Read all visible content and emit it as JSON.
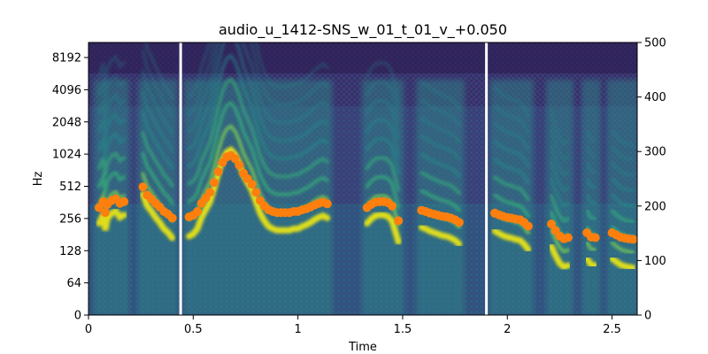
{
  "chart_data": {
    "type": "heatmap",
    "title": "audio_u_1412-SNS_w_01_t_01_v_+0.050",
    "xlabel": "Time",
    "ylabel": "Hz",
    "xlim": [
      0,
      2.62
    ],
    "x_ticks": [
      "0",
      "0.5",
      "1",
      "1.5",
      "2",
      "2.5"
    ],
    "x_tick_values": [
      0,
      0.5,
      1,
      1.5,
      2,
      2.5
    ],
    "y_left_ticks": [
      "0",
      "64",
      "128",
      "256",
      "512",
      "1024",
      "2048",
      "4096",
      "8192"
    ],
    "y_left_tick_values": [
      0,
      64,
      128,
      256,
      512,
      1024,
      2048,
      4096,
      8192
    ],
    "y_right_ticks": [
      "0",
      "100",
      "200",
      "300",
      "400",
      "500"
    ],
    "y_right_tick_values": [
      0,
      100,
      200,
      300,
      400,
      500
    ],
    "y_right_lim": [
      0,
      500
    ],
    "colormap": "viridis",
    "segment_gaps": [
      0.44,
      1.9
    ],
    "pitch_color": "#ff7f0e",
    "pitch_points": [
      {
        "x": 0.05,
        "y": 197
      },
      {
        "x": 0.07,
        "y": 208
      },
      {
        "x": 0.08,
        "y": 188
      },
      {
        "x": 0.09,
        "y": 203
      },
      {
        "x": 0.11,
        "y": 210
      },
      {
        "x": 0.13,
        "y": 213
      },
      {
        "x": 0.15,
        "y": 205
      },
      {
        "x": 0.17,
        "y": 208
      },
      {
        "x": 0.26,
        "y": 235
      },
      {
        "x": 0.28,
        "y": 220
      },
      {
        "x": 0.3,
        "y": 213
      },
      {
        "x": 0.32,
        "y": 205
      },
      {
        "x": 0.34,
        "y": 198
      },
      {
        "x": 0.36,
        "y": 190
      },
      {
        "x": 0.38,
        "y": 185
      },
      {
        "x": 0.4,
        "y": 178
      },
      {
        "x": 0.48,
        "y": 180
      },
      {
        "x": 0.5,
        "y": 183
      },
      {
        "x": 0.52,
        "y": 190
      },
      {
        "x": 0.54,
        "y": 205
      },
      {
        "x": 0.56,
        "y": 215
      },
      {
        "x": 0.58,
        "y": 225
      },
      {
        "x": 0.6,
        "y": 243
      },
      {
        "x": 0.62,
        "y": 263
      },
      {
        "x": 0.64,
        "y": 280
      },
      {
        "x": 0.66,
        "y": 290
      },
      {
        "x": 0.68,
        "y": 293
      },
      {
        "x": 0.7,
        "y": 287
      },
      {
        "x": 0.72,
        "y": 275
      },
      {
        "x": 0.74,
        "y": 260
      },
      {
        "x": 0.76,
        "y": 250
      },
      {
        "x": 0.78,
        "y": 240
      },
      {
        "x": 0.8,
        "y": 225
      },
      {
        "x": 0.82,
        "y": 210
      },
      {
        "x": 0.84,
        "y": 200
      },
      {
        "x": 0.86,
        "y": 193
      },
      {
        "x": 0.88,
        "y": 190
      },
      {
        "x": 0.9,
        "y": 188
      },
      {
        "x": 0.92,
        "y": 188
      },
      {
        "x": 0.94,
        "y": 188
      },
      {
        "x": 0.96,
        "y": 188
      },
      {
        "x": 0.98,
        "y": 190
      },
      {
        "x": 1.0,
        "y": 190
      },
      {
        "x": 1.02,
        "y": 193
      },
      {
        "x": 1.04,
        "y": 195
      },
      {
        "x": 1.06,
        "y": 198
      },
      {
        "x": 1.08,
        "y": 202
      },
      {
        "x": 1.1,
        "y": 205
      },
      {
        "x": 1.12,
        "y": 207
      },
      {
        "x": 1.14,
        "y": 204
      },
      {
        "x": 1.33,
        "y": 197
      },
      {
        "x": 1.35,
        "y": 203
      },
      {
        "x": 1.37,
        "y": 207
      },
      {
        "x": 1.39,
        "y": 208
      },
      {
        "x": 1.41,
        "y": 208
      },
      {
        "x": 1.43,
        "y": 206
      },
      {
        "x": 1.45,
        "y": 200
      },
      {
        "x": 1.48,
        "y": 173
      },
      {
        "x": 1.59,
        "y": 192
      },
      {
        "x": 1.61,
        "y": 190
      },
      {
        "x": 1.63,
        "y": 187
      },
      {
        "x": 1.65,
        "y": 185
      },
      {
        "x": 1.67,
        "y": 183
      },
      {
        "x": 1.69,
        "y": 181
      },
      {
        "x": 1.71,
        "y": 180
      },
      {
        "x": 1.73,
        "y": 178
      },
      {
        "x": 1.75,
        "y": 175
      },
      {
        "x": 1.77,
        "y": 170
      },
      {
        "x": 1.94,
        "y": 187
      },
      {
        "x": 1.96,
        "y": 184
      },
      {
        "x": 1.98,
        "y": 181
      },
      {
        "x": 2.0,
        "y": 179
      },
      {
        "x": 2.02,
        "y": 178
      },
      {
        "x": 2.04,
        "y": 176
      },
      {
        "x": 2.06,
        "y": 175
      },
      {
        "x": 2.08,
        "y": 170
      },
      {
        "x": 2.1,
        "y": 163
      },
      {
        "x": 2.21,
        "y": 167
      },
      {
        "x": 2.23,
        "y": 155
      },
      {
        "x": 2.25,
        "y": 145
      },
      {
        "x": 2.27,
        "y": 140
      },
      {
        "x": 2.29,
        "y": 142
      },
      {
        "x": 2.38,
        "y": 151
      },
      {
        "x": 2.4,
        "y": 143
      },
      {
        "x": 2.42,
        "y": 142
      },
      {
        "x": 2.5,
        "y": 151
      },
      {
        "x": 2.52,
        "y": 147
      },
      {
        "x": 2.54,
        "y": 143
      },
      {
        "x": 2.56,
        "y": 141
      },
      {
        "x": 2.58,
        "y": 140
      },
      {
        "x": 2.6,
        "y": 139
      }
    ]
  }
}
